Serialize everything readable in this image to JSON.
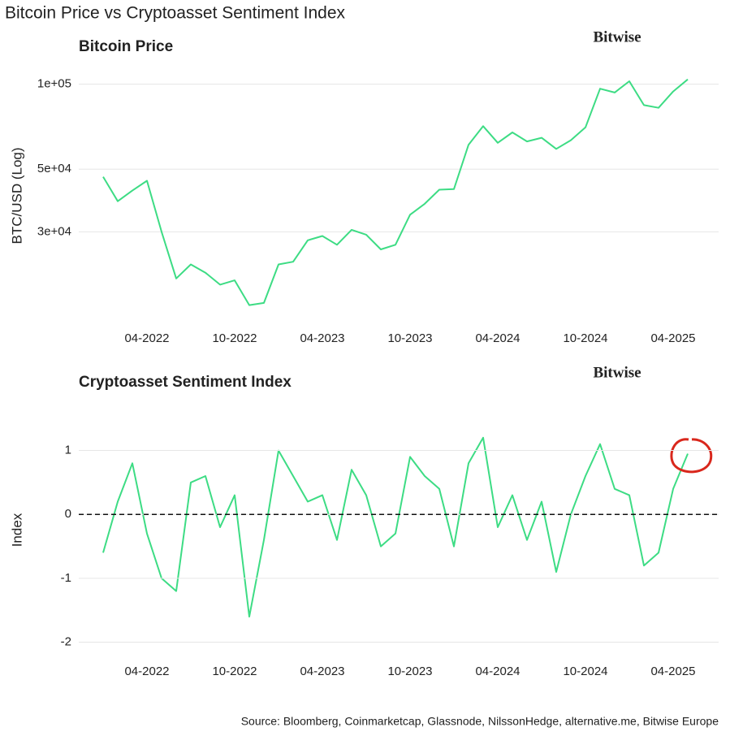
{
  "title": "Bitcoin Price vs Cryptoasset Sentiment Index",
  "source": "Source: Bloomberg, Coinmarketcap, Glassnode, NilssonHedge, alternative.me, Bitwise Europe",
  "chart_data": [
    {
      "type": "line",
      "title": "Bitcoin Price",
      "brand": "Bitwise",
      "y_label": "BTC/USD (Log)",
      "log_scale": true,
      "grid": true,
      "color": "#3ddc84",
      "x": [
        "2022-01",
        "2022-02",
        "2022-03",
        "2022-04",
        "2022-05",
        "2022-06",
        "2022-07",
        "2022-08",
        "2022-09",
        "2022-10",
        "2022-11",
        "2022-12",
        "2023-01",
        "2023-02",
        "2023-03",
        "2023-04",
        "2023-05",
        "2023-06",
        "2023-07",
        "2023-08",
        "2023-09",
        "2023-10",
        "2023-11",
        "2023-12",
        "2024-01",
        "2024-02",
        "2024-03",
        "2024-04",
        "2024-05",
        "2024-06",
        "2024-07",
        "2024-08",
        "2024-09",
        "2024-10",
        "2024-11",
        "2024-12",
        "2025-01",
        "2025-02",
        "2025-03",
        "2025-04",
        "2025-05"
      ],
      "values": [
        47000,
        38500,
        42000,
        45500,
        30000,
        20500,
        23000,
        21500,
        19500,
        20200,
        16500,
        16800,
        23000,
        23500,
        28000,
        29000,
        27000,
        30500,
        29300,
        26000,
        27000,
        34500,
        37700,
        42300,
        42500,
        61000,
        71000,
        62000,
        67500,
        62700,
        64600,
        59000,
        63300,
        70300,
        96400,
        93400,
        102400,
        84300,
        82500,
        94200,
        104000
      ],
      "xlim": [
        "2021-11",
        "2025-07"
      ],
      "xticks": [
        {
          "value": "2022-04",
          "label": "04-2022"
        },
        {
          "value": "2022-10",
          "label": "10-2022"
        },
        {
          "value": "2023-04",
          "label": "04-2023"
        },
        {
          "value": "2023-10",
          "label": "10-2023"
        },
        {
          "value": "2024-04",
          "label": "04-2024"
        },
        {
          "value": "2024-10",
          "label": "10-2024"
        },
        {
          "value": "2025-04",
          "label": "04-2025"
        }
      ],
      "ylim": [
        15000,
        108000
      ],
      "yticks": [
        {
          "value": 30000,
          "label": "3e+04"
        },
        {
          "value": 50000,
          "label": "5e+04"
        },
        {
          "value": 100000,
          "label": "1e+05"
        }
      ]
    },
    {
      "type": "line",
      "title": "Cryptoasset Sentiment Index",
      "brand": "Bitwise",
      "y_label": "Index",
      "log_scale": false,
      "grid": true,
      "color": "#3ddc84",
      "hline": 0,
      "x": [
        "2022-01",
        "2022-02",
        "2022-03",
        "2022-04",
        "2022-05",
        "2022-06",
        "2022-07",
        "2022-08",
        "2022-09",
        "2022-10",
        "2022-11",
        "2022-12",
        "2023-01",
        "2023-02",
        "2023-03",
        "2023-04",
        "2023-05",
        "2023-06",
        "2023-07",
        "2023-08",
        "2023-09",
        "2023-10",
        "2023-11",
        "2023-12",
        "2024-01",
        "2024-02",
        "2024-03",
        "2024-04",
        "2024-05",
        "2024-06",
        "2024-07",
        "2024-08",
        "2024-09",
        "2024-10",
        "2024-11",
        "2024-12",
        "2025-01",
        "2025-02",
        "2025-03",
        "2025-04",
        "2025-05"
      ],
      "values": [
        -0.6,
        0.2,
        0.8,
        -0.3,
        -1.0,
        -1.2,
        0.5,
        0.6,
        -0.2,
        0.3,
        -1.6,
        -0.4,
        1.0,
        0.6,
        0.2,
        0.3,
        -0.4,
        0.7,
        0.3,
        -0.5,
        -0.3,
        0.9,
        0.6,
        0.4,
        -0.5,
        0.8,
        1.2,
        -0.2,
        0.3,
        -0.4,
        0.2,
        -0.9,
        0.0,
        0.6,
        1.1,
        0.4,
        0.3,
        -0.8,
        -0.6,
        0.4,
        0.95
      ],
      "xlim": [
        "2021-11",
        "2025-07"
      ],
      "xticks": [
        {
          "value": "2022-04",
          "label": "04-2022"
        },
        {
          "value": "2022-10",
          "label": "10-2022"
        },
        {
          "value": "2023-04",
          "label": "04-2023"
        },
        {
          "value": "2023-10",
          "label": "10-2023"
        },
        {
          "value": "2024-04",
          "label": "04-2024"
        },
        {
          "value": "2024-10",
          "label": "10-2024"
        },
        {
          "value": "2025-04",
          "label": "04-2025"
        }
      ],
      "ylim": [
        -2.12,
        1.63
      ],
      "yticks": [
        -2,
        -1,
        0,
        1
      ]
    }
  ]
}
